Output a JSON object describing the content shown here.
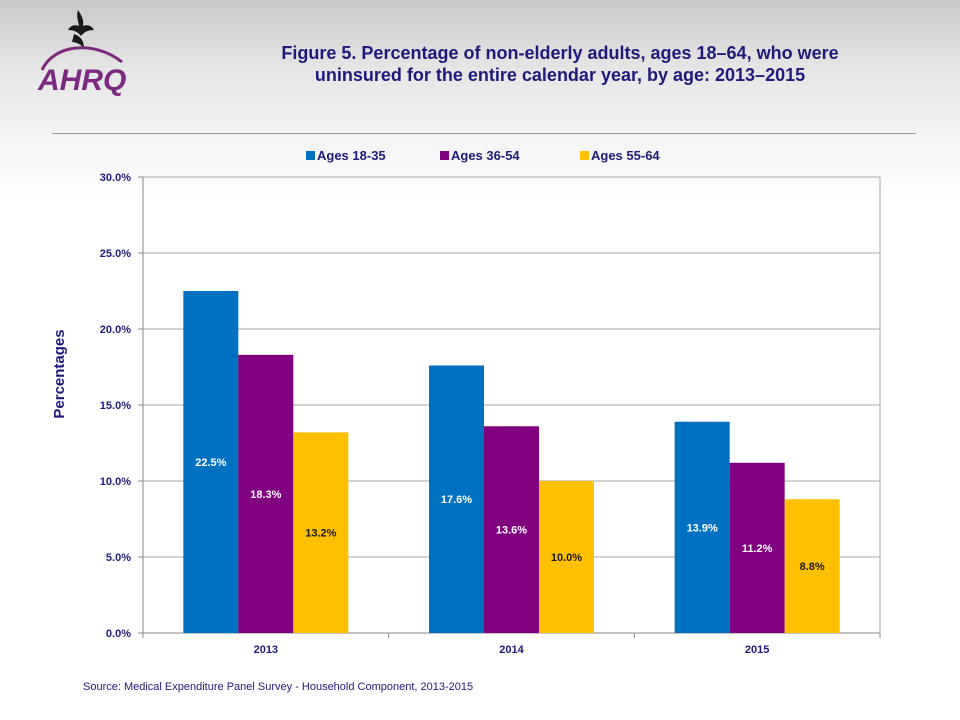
{
  "title_line1": "Figure 5. Percentage of non-elderly adults, ages 18–64, who were",
  "title_line2": "uninsured for the entire calendar year, by age: 2013–2015",
  "logo_text": "AHRQ",
  "source": "Source:  Medical Expenditure Panel Survey - Household Component, 2013-2015",
  "colors": {
    "ages_18_35": "#0070c0",
    "ages_36_54": "#800080",
    "ages_55_64": "#ffc000",
    "text": "#1f1a7a",
    "grid": "#a6a6a6"
  },
  "chart_data": {
    "type": "bar",
    "categories": [
      "2013",
      "2014",
      "2015"
    ],
    "series": [
      {
        "name": "Ages 18-35",
        "values": [
          22.5,
          17.6,
          13.9
        ],
        "labels": [
          "22.5%",
          "17.6%",
          "13.9%"
        ]
      },
      {
        "name": "Ages 36-54",
        "values": [
          18.3,
          13.6,
          11.2
        ],
        "labels": [
          "18.3%",
          "13.6%",
          "11.2%"
        ]
      },
      {
        "name": "Ages 55-64",
        "values": [
          13.2,
          10.0,
          8.8
        ],
        "labels": [
          "13.2%",
          "10.0%",
          "8.8%"
        ]
      }
    ],
    "ylabel": "Percentages",
    "xlabel": "",
    "ylim": [
      0,
      30
    ],
    "yticks": [
      "0.0%",
      "5.0%",
      "10.0%",
      "15.0%",
      "20.0%",
      "25.0%",
      "30.0%"
    ],
    "grid": true,
    "legend": "top-center"
  }
}
